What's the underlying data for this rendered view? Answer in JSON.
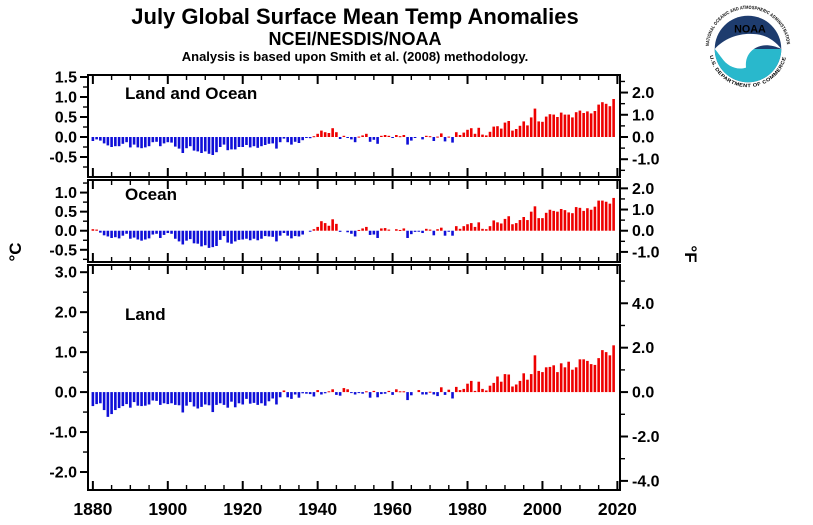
{
  "header": {
    "title": "July Global Surface Mean Temp Anomalies",
    "subtitle": "NCEI/NESDIS/NOAA",
    "methodology": "Analysis is based upon Smith et al. (2008) methodology."
  },
  "logo": {
    "acronym": "NOAA",
    "ring_text_top": "NATIONAL OCEANIC AND ATMOSPHERIC ADMINISTRATION",
    "ring_text_bottom": "U.S. DEPARTMENT OF COMMERCE"
  },
  "axes": {
    "left_unit": "°C",
    "right_unit": "°F",
    "x_range": [
      1878.7,
      2020.7
    ],
    "x_major_ticks": [
      1880,
      1900,
      1920,
      1940,
      1960,
      1980,
      2000,
      2020
    ],
    "x_minor_step": 5
  },
  "colors": {
    "positive_bar": "#ee0000",
    "negative_bar": "#0f0fd8",
    "axis": "#000000",
    "background": "#ffffff",
    "logo_navy": "#1e3c6e",
    "logo_teal": "#29b8cc",
    "logo_white": "#ffffff"
  },
  "chart_data": [
    {
      "type": "bar",
      "title": "Land and Ocean",
      "x_start": 1880,
      "ylim": [
        -1.0,
        1.55
      ],
      "yticks_c": [
        1.5,
        1.0,
        0.5,
        0.0,
        -0.5
      ],
      "ytick_minor_c": 0.25,
      "yticks_f": [
        2.0,
        1.0,
        0.0,
        -1.0
      ],
      "ytick_minor_f": 0.5,
      "values": [
        -0.1,
        -0.06,
        -0.09,
        -0.16,
        -0.21,
        -0.25,
        -0.23,
        -0.23,
        -0.17,
        -0.13,
        -0.26,
        -0.19,
        -0.26,
        -0.28,
        -0.26,
        -0.23,
        -0.13,
        -0.12,
        -0.23,
        -0.16,
        -0.13,
        -0.14,
        -0.24,
        -0.29,
        -0.4,
        -0.28,
        -0.23,
        -0.34,
        -0.36,
        -0.4,
        -0.36,
        -0.42,
        -0.45,
        -0.38,
        -0.25,
        -0.19,
        -0.33,
        -0.31,
        -0.31,
        -0.25,
        -0.25,
        -0.2,
        -0.26,
        -0.23,
        -0.27,
        -0.23,
        -0.2,
        -0.17,
        -0.16,
        -0.29,
        -0.13,
        -0.04,
        -0.13,
        -0.19,
        -0.12,
        -0.15,
        -0.08,
        -0.01,
        -0.03,
        0.02,
        0.08,
        0.16,
        0.12,
        0.1,
        0.22,
        0.12,
        -0.05,
        0.03,
        -0.01,
        -0.06,
        -0.13,
        0.01,
        0.04,
        0.08,
        -0.12,
        -0.07,
        -0.17,
        0.03,
        0.05,
        0.03,
        -0.02,
        0.05,
        0.02,
        0.05,
        -0.19,
        -0.09,
        -0.02,
        0.0,
        -0.06,
        0.03,
        0.02,
        -0.1,
        0.01,
        0.09,
        -0.11,
        0.01,
        -0.14,
        0.12,
        0.05,
        0.11,
        0.18,
        0.22,
        0.08,
        0.23,
        0.06,
        0.04,
        0.13,
        0.26,
        0.27,
        0.21,
        0.36,
        0.4,
        0.16,
        0.2,
        0.28,
        0.39,
        0.29,
        0.49,
        0.71,
        0.39,
        0.38,
        0.51,
        0.57,
        0.56,
        0.5,
        0.61,
        0.56,
        0.56,
        0.49,
        0.62,
        0.66,
        0.6,
        0.64,
        0.59,
        0.65,
        0.81,
        0.87,
        0.83,
        0.77,
        0.95
      ]
    },
    {
      "type": "bar",
      "title": "Ocean",
      "x_start": 1880,
      "ylim": [
        -0.82,
        1.33
      ],
      "yticks_c": [
        1.0,
        0.5,
        0.0,
        -0.5
      ],
      "ytick_minor_c": 0.25,
      "yticks_f": [
        2.0,
        1.0,
        0.0,
        -1.0
      ],
      "ytick_minor_f": 0.5,
      "values": [
        0.04,
        0.03,
        -0.05,
        -0.12,
        -0.15,
        -0.19,
        -0.17,
        -0.2,
        -0.13,
        -0.08,
        -0.21,
        -0.18,
        -0.23,
        -0.26,
        -0.23,
        -0.2,
        -0.1,
        -0.08,
        -0.19,
        -0.11,
        -0.06,
        -0.08,
        -0.21,
        -0.28,
        -0.36,
        -0.26,
        -0.22,
        -0.33,
        -0.34,
        -0.41,
        -0.38,
        -0.45,
        -0.43,
        -0.4,
        -0.24,
        -0.14,
        -0.31,
        -0.34,
        -0.28,
        -0.24,
        -0.23,
        -0.21,
        -0.25,
        -0.21,
        -0.25,
        -0.21,
        -0.14,
        -0.15,
        -0.16,
        -0.28,
        -0.13,
        -0.06,
        -0.13,
        -0.2,
        -0.14,
        -0.15,
        -0.1,
        0.0,
        -0.02,
        0.04,
        0.1,
        0.25,
        0.2,
        0.13,
        0.3,
        0.18,
        -0.03,
        0.0,
        -0.04,
        -0.08,
        -0.15,
        0.02,
        0.06,
        0.1,
        -0.11,
        -0.1,
        -0.19,
        0.06,
        0.07,
        0.03,
        0.0,
        0.04,
        0.02,
        0.06,
        -0.19,
        -0.09,
        -0.03,
        -0.02,
        -0.06,
        0.05,
        0.03,
        -0.12,
        0.04,
        0.08,
        -0.13,
        -0.01,
        -0.13,
        0.12,
        0.05,
        0.12,
        0.17,
        0.2,
        0.1,
        0.22,
        0.05,
        0.04,
        0.12,
        0.27,
        0.22,
        0.19,
        0.31,
        0.38,
        0.17,
        0.2,
        0.28,
        0.36,
        0.28,
        0.5,
        0.64,
        0.33,
        0.33,
        0.47,
        0.55,
        0.52,
        0.5,
        0.57,
        0.54,
        0.48,
        0.46,
        0.62,
        0.6,
        0.52,
        0.59,
        0.55,
        0.63,
        0.79,
        0.79,
        0.76,
        0.71,
        0.86
      ]
    },
    {
      "type": "bar",
      "title": "Land",
      "x_start": 1880,
      "ylim": [
        -2.45,
        3.18
      ],
      "yticks_c": [
        3.0,
        2.0,
        1.0,
        0.0,
        -1.0,
        -2.0
      ],
      "ytick_minor_c": 0.5,
      "yticks_f": [
        4.0,
        2.0,
        0.0,
        -2.0,
        -4.0
      ],
      "ytick_minor_f": 1.0,
      "values": [
        -0.35,
        -0.3,
        -0.28,
        -0.45,
        -0.62,
        -0.55,
        -0.45,
        -0.4,
        -0.35,
        -0.3,
        -0.39,
        -0.25,
        -0.34,
        -0.35,
        -0.34,
        -0.31,
        -0.21,
        -0.22,
        -0.32,
        -0.28,
        -0.3,
        -0.28,
        -0.32,
        -0.33,
        -0.51,
        -0.34,
        -0.25,
        -0.36,
        -0.41,
        -0.37,
        -0.31,
        -0.33,
        -0.5,
        -0.32,
        -0.28,
        -0.32,
        -0.39,
        -0.24,
        -0.38,
        -0.28,
        -0.31,
        -0.17,
        -0.29,
        -0.27,
        -0.32,
        -0.28,
        -0.34,
        -0.23,
        -0.16,
        -0.31,
        -0.13,
        0.04,
        -0.13,
        -0.17,
        -0.06,
        -0.14,
        -0.03,
        -0.04,
        -0.05,
        -0.11,
        0.05,
        -0.06,
        -0.03,
        0.02,
        0.07,
        -0.07,
        -0.09,
        0.1,
        0.07,
        -0.01,
        -0.06,
        -0.01,
        -0.04,
        0.02,
        -0.14,
        0.03,
        -0.13,
        -0.05,
        -0.04,
        0.03,
        -0.07,
        0.07,
        0.02,
        0.02,
        -0.2,
        -0.08,
        0.0,
        0.05,
        -0.06,
        -0.06,
        0.01,
        -0.06,
        -0.1,
        0.12,
        -0.07,
        0.06,
        -0.16,
        0.13,
        0.05,
        0.08,
        0.21,
        0.28,
        0.03,
        0.26,
        0.08,
        0.04,
        0.16,
        0.23,
        0.39,
        0.26,
        0.45,
        0.44,
        0.14,
        0.19,
        0.28,
        0.47,
        0.31,
        0.45,
        0.92,
        0.53,
        0.5,
        0.62,
        0.63,
        0.67,
        0.5,
        0.72,
        0.62,
        0.76,
        0.56,
        0.62,
        0.82,
        0.82,
        0.78,
        0.7,
        0.68,
        0.85,
        1.05,
        1.0,
        0.92,
        1.17
      ]
    }
  ]
}
